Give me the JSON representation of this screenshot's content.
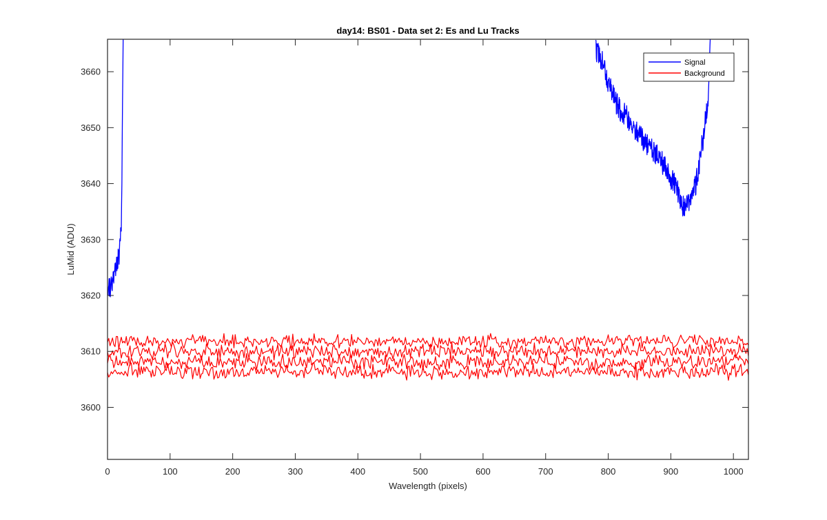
{
  "chart_data": {
    "type": "line",
    "title": "day14: BS01 - Data set 2: Es and Lu Tracks",
    "xlabel": "Wavelength (pixels)",
    "ylabel": "LuMid (ADU)",
    "xlim": [
      0,
      1024
    ],
    "ylim": [
      3590.7,
      3665.8
    ],
    "xticks": [
      0,
      100,
      200,
      300,
      400,
      500,
      600,
      700,
      800,
      900,
      1000
    ],
    "yticks": [
      3600,
      3610,
      3620,
      3630,
      3640,
      3650,
      3660
    ],
    "grid": false,
    "legend_position": "top-right",
    "series": [
      {
        "name": "Signal",
        "color": "#0000ff",
        "segments": [
          {
            "x": [
              0,
              5,
              10,
              15,
              18,
              20,
              22,
              23,
              24,
              25
            ],
            "y": [
              3622,
              3621,
              3624,
              3625,
              3627,
              3629,
              3632,
              3640,
              3655,
              3666
            ]
          },
          {
            "x": [
              780,
              790,
              800,
              810,
              820,
              830,
              840,
              850,
              860,
              870,
              880,
              890,
              900,
              910,
              915,
              920,
              925,
              930,
              935,
              940,
              945,
              950,
              955,
              960,
              963
            ],
            "y": [
              3664,
              3662,
              3658,
              3655,
              3653,
              3652,
              3650,
              3649,
              3647,
              3646,
              3645,
              3643,
              3641,
              3639,
              3637,
              3636,
              3636,
              3637,
              3638,
              3640,
              3643,
              3647,
              3651,
              3656,
              3666
            ]
          }
        ]
      },
      {
        "name": "Background",
        "color": "#ff0000",
        "band": {
          "lines": [
            {
              "center": 3611.8,
              "amplitude": 1.7
            },
            {
              "center": 3610.0,
              "amplitude": 1.9
            },
            {
              "center": 3608.1,
              "amplitude": 1.9
            },
            {
              "center": 3606.4,
              "amplitude": 1.9
            }
          ],
          "x_step": 2
        }
      }
    ],
    "legend": [
      "Signal",
      "Background"
    ]
  }
}
